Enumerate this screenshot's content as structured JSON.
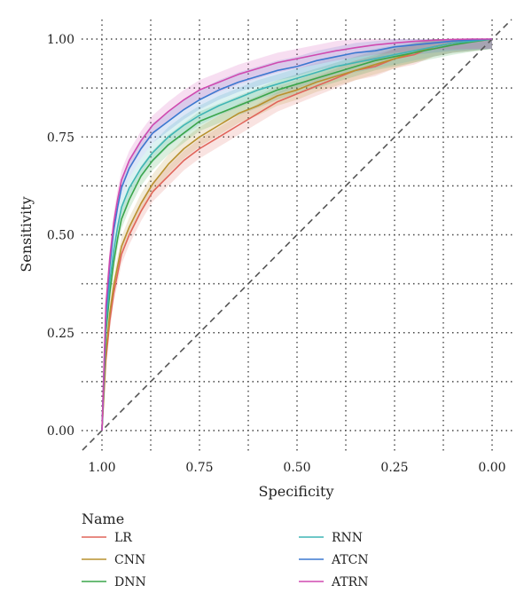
{
  "chart_data": {
    "type": "line",
    "title": "",
    "xlabel": "Specificity",
    "ylabel": "Sensitivity",
    "xlim": [
      1.0,
      0.0
    ],
    "ylim": [
      0.0,
      1.0
    ],
    "x_reversed": true,
    "x_ticks": [
      "1.00",
      "0.75",
      "0.50",
      "0.25",
      "0.00"
    ],
    "y_ticks": [
      "0.00",
      "0.25",
      "0.50",
      "0.75",
      "1.00"
    ],
    "x_tick_values": [
      1.0,
      0.75,
      0.5,
      0.25,
      0.0
    ],
    "y_tick_values": [
      0.0,
      0.25,
      0.5,
      0.75,
      1.0
    ],
    "grid": "dotted",
    "reference_line": "diagonal-dashed",
    "confidence_bands": true,
    "legend_title": "Name",
    "legend_position": "bottom",
    "series": [
      {
        "name": "LR",
        "color": "#e0655a",
        "specificity": [
          1.0,
          0.99,
          0.98,
          0.97,
          0.96,
          0.95,
          0.93,
          0.9,
          0.87,
          0.83,
          0.79,
          0.75,
          0.7,
          0.65,
          0.6,
          0.55,
          0.5,
          0.45,
          0.4,
          0.35,
          0.3,
          0.25,
          0.2,
          0.15,
          0.1,
          0.05,
          0.0
        ],
        "sensitivity": [
          0.0,
          0.18,
          0.28,
          0.35,
          0.4,
          0.45,
          0.5,
          0.56,
          0.61,
          0.65,
          0.69,
          0.72,
          0.75,
          0.78,
          0.81,
          0.84,
          0.86,
          0.88,
          0.9,
          0.92,
          0.93,
          0.95,
          0.96,
          0.98,
          0.99,
          0.995,
          1.0
        ]
      },
      {
        "name": "CNN",
        "color": "#b8902e",
        "specificity": [
          1.0,
          0.99,
          0.98,
          0.97,
          0.96,
          0.95,
          0.93,
          0.9,
          0.87,
          0.83,
          0.79,
          0.75,
          0.7,
          0.65,
          0.6,
          0.55,
          0.5,
          0.45,
          0.4,
          0.35,
          0.3,
          0.25,
          0.2,
          0.15,
          0.1,
          0.05,
          0.0
        ],
        "sensitivity": [
          0.0,
          0.2,
          0.3,
          0.37,
          0.42,
          0.47,
          0.52,
          0.58,
          0.63,
          0.68,
          0.72,
          0.75,
          0.78,
          0.81,
          0.83,
          0.855,
          0.87,
          0.89,
          0.905,
          0.92,
          0.935,
          0.95,
          0.965,
          0.98,
          0.99,
          0.995,
          1.0
        ]
      },
      {
        "name": "DNN",
        "color": "#3aa54a",
        "specificity": [
          1.0,
          0.99,
          0.98,
          0.97,
          0.96,
          0.95,
          0.93,
          0.9,
          0.87,
          0.83,
          0.79,
          0.75,
          0.7,
          0.65,
          0.6,
          0.55,
          0.5,
          0.45,
          0.4,
          0.35,
          0.3,
          0.25,
          0.2,
          0.15,
          0.1,
          0.05,
          0.0
        ],
        "sensitivity": [
          0.0,
          0.25,
          0.35,
          0.43,
          0.49,
          0.54,
          0.59,
          0.65,
          0.69,
          0.73,
          0.76,
          0.79,
          0.81,
          0.83,
          0.85,
          0.87,
          0.885,
          0.9,
          0.915,
          0.93,
          0.945,
          0.955,
          0.965,
          0.975,
          0.985,
          0.993,
          1.0
        ]
      },
      {
        "name": "RNN",
        "color": "#3fb5b5",
        "specificity": [
          1.0,
          0.99,
          0.98,
          0.97,
          0.96,
          0.95,
          0.93,
          0.9,
          0.87,
          0.83,
          0.79,
          0.75,
          0.7,
          0.65,
          0.6,
          0.55,
          0.5,
          0.45,
          0.4,
          0.35,
          0.3,
          0.25,
          0.2,
          0.15,
          0.1,
          0.05,
          0.0
        ],
        "sensitivity": [
          0.0,
          0.27,
          0.38,
          0.46,
          0.52,
          0.57,
          0.62,
          0.67,
          0.71,
          0.75,
          0.78,
          0.805,
          0.83,
          0.85,
          0.87,
          0.885,
          0.9,
          0.915,
          0.93,
          0.94,
          0.95,
          0.96,
          0.97,
          0.98,
          0.99,
          0.995,
          1.0
        ]
      },
      {
        "name": "ATCN",
        "color": "#3b78d0",
        "specificity": [
          1.0,
          0.99,
          0.98,
          0.97,
          0.96,
          0.95,
          0.93,
          0.9,
          0.87,
          0.83,
          0.79,
          0.75,
          0.7,
          0.65,
          0.6,
          0.55,
          0.5,
          0.45,
          0.4,
          0.35,
          0.3,
          0.25,
          0.2,
          0.15,
          0.1,
          0.05,
          0.0
        ],
        "sensitivity": [
          0.0,
          0.3,
          0.42,
          0.51,
          0.57,
          0.62,
          0.67,
          0.72,
          0.76,
          0.79,
          0.82,
          0.845,
          0.87,
          0.89,
          0.905,
          0.92,
          0.93,
          0.945,
          0.955,
          0.965,
          0.97,
          0.98,
          0.985,
          0.99,
          0.995,
          0.998,
          1.0
        ]
      },
      {
        "name": "ATRN",
        "color": "#d04ab0",
        "specificity": [
          1.0,
          0.99,
          0.98,
          0.97,
          0.96,
          0.95,
          0.93,
          0.9,
          0.87,
          0.83,
          0.79,
          0.75,
          0.7,
          0.65,
          0.6,
          0.55,
          0.5,
          0.45,
          0.4,
          0.35,
          0.3,
          0.25,
          0.2,
          0.15,
          0.1,
          0.05,
          0.0
        ],
        "sensitivity": [
          0.0,
          0.32,
          0.44,
          0.53,
          0.59,
          0.64,
          0.69,
          0.74,
          0.78,
          0.815,
          0.845,
          0.87,
          0.89,
          0.91,
          0.925,
          0.94,
          0.95,
          0.96,
          0.97,
          0.978,
          0.985,
          0.99,
          0.994,
          0.997,
          0.999,
          1.0,
          1.0
        ]
      }
    ]
  }
}
